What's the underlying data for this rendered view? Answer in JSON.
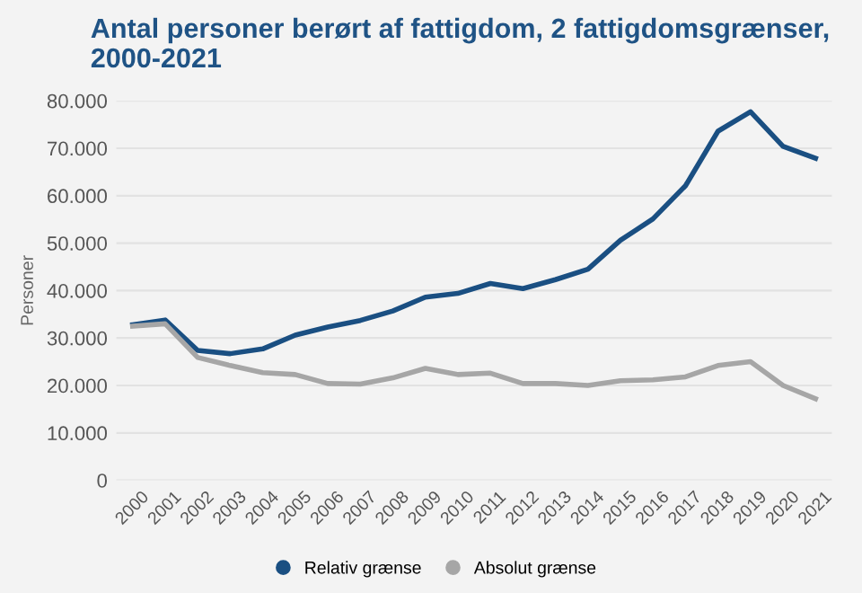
{
  "chart_data": {
    "type": "line",
    "title": "Antal personer berørt af fattigdom, 2 fattigdomsgrænser, 2000-2021",
    "ylabel": "Personer",
    "categories": [
      "2000",
      "2001",
      "2002",
      "2003",
      "2004",
      "2005",
      "2006",
      "2007",
      "2008",
      "2009",
      "2010",
      "2011",
      "2012",
      "2013",
      "2014",
      "2015",
      "2016",
      "2017",
      "2018",
      "2019",
      "2020",
      "2021"
    ],
    "series": [
      {
        "name": "Relativ grænse",
        "color": "#1a4f82",
        "values": [
          32800,
          33800,
          27400,
          26700,
          27700,
          30600,
          32300,
          33700,
          35700,
          38600,
          39400,
          41500,
          40400,
          42300,
          44500,
          50600,
          55100,
          62100,
          73600,
          77700,
          70400,
          67900
        ]
      },
      {
        "name": "Absolut grænse",
        "color": "#a6a6a6",
        "values": [
          32500,
          33000,
          25900,
          24200,
          22700,
          22300,
          20400,
          20300,
          21600,
          23600,
          22300,
          22600,
          20400,
          20400,
          20000,
          21000,
          21200,
          21800,
          24200,
          25000,
          20000,
          17200
        ]
      }
    ],
    "ylim": [
      0,
      80000
    ],
    "yticks": [
      {
        "value": 0,
        "label": "0"
      },
      {
        "value": 10000,
        "label": "10.000"
      },
      {
        "value": 20000,
        "label": "20.000"
      },
      {
        "value": 30000,
        "label": "30.000"
      },
      {
        "value": 40000,
        "label": "40.000"
      },
      {
        "value": 50000,
        "label": "50.000"
      },
      {
        "value": 60000,
        "label": "60.000"
      },
      {
        "value": 70000,
        "label": "70.000"
      },
      {
        "value": 80000,
        "label": "80.000"
      }
    ],
    "grid": "y",
    "legend": "bottom"
  }
}
